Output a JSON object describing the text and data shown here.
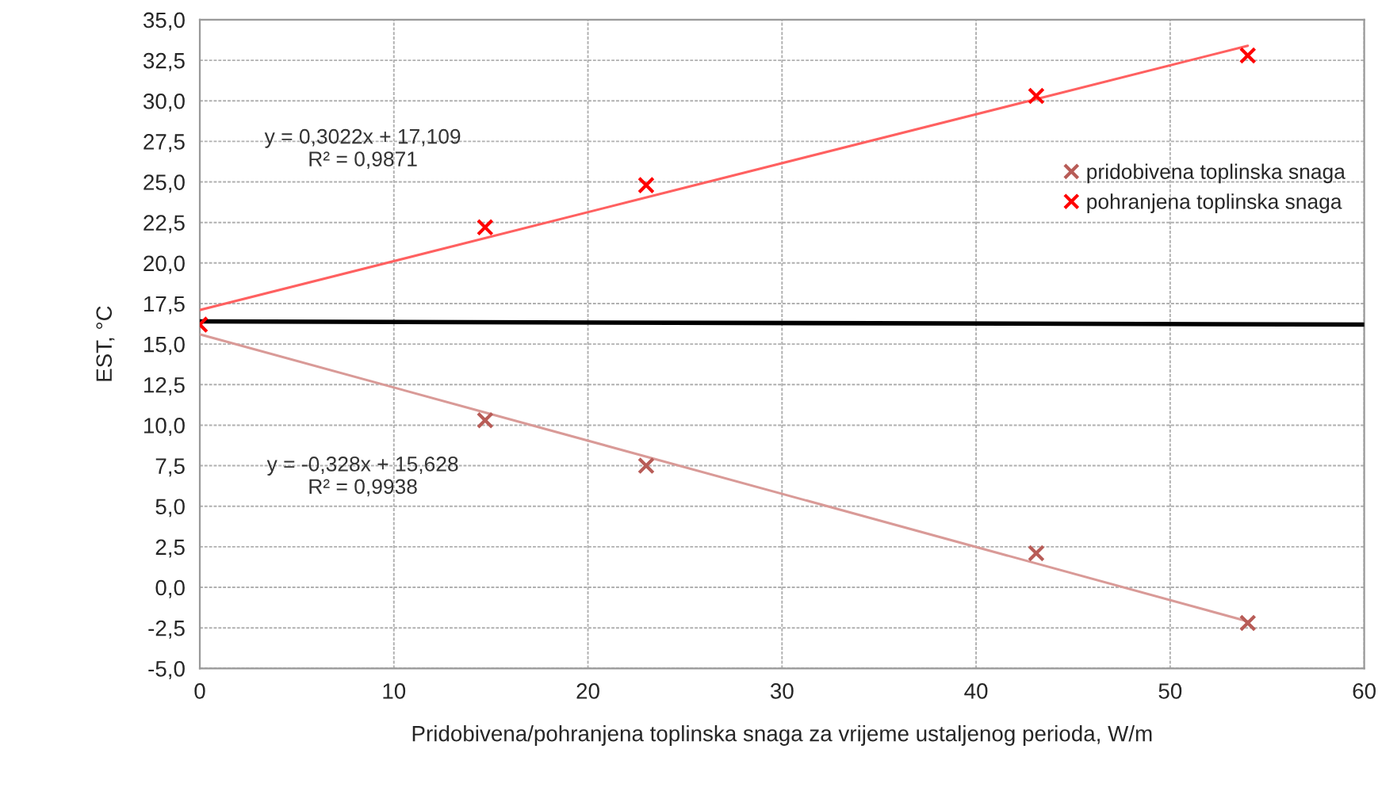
{
  "chart_data": {
    "type": "scatter",
    "xlabel": "Pridobivena/pohranjena toplinska snaga za vrijeme ustaljenog perioda, W/m",
    "ylabel": "EST, °C",
    "series": [
      {
        "name": "pridobivena toplinska snaga",
        "color": "#b85c57",
        "marker": "cross",
        "x": [
          14.7,
          23,
          43.1,
          54
        ],
        "values": [
          10.3,
          7.5,
          2.1,
          -2.2
        ]
      },
      {
        "name": "pohranjena toplinska snaga",
        "color": "#ff0000",
        "marker": "cross",
        "x": [
          0,
          14.7,
          23,
          43.1,
          54
        ],
        "values": [
          16.2,
          22.2,
          24.8,
          30.3,
          32.8
        ]
      },
      {
        "type": "line",
        "color": "#ff6060",
        "x": [
          0,
          54
        ],
        "values": [
          17.1,
          33.4
        ]
      },
      {
        "type": "line",
        "color": "#d99a97",
        "x": [
          0,
          54
        ],
        "values": [
          15.6,
          -2.1
        ]
      },
      {
        "type": "line",
        "color": "#000000",
        "x": [
          0,
          60
        ],
        "values": [
          16.4,
          16.2
        ]
      }
    ],
    "annotations": [
      "y = 0,3022x + 17,109\nR² = 0,9871",
      "y = -0,328x + 15,628\nR² = 0,9938"
    ],
    "xlim": [
      0,
      60
    ],
    "xticks": [
      0,
      10,
      20,
      30,
      40,
      50,
      60
    ],
    "ylim": [
      -5,
      35
    ],
    "yticks": [
      {
        "value": -5,
        "label": "-5,0"
      },
      {
        "value": -2.5,
        "label": "-2,5"
      },
      {
        "value": 0,
        "label": "0,0"
      },
      {
        "value": 2.5,
        "label": "2,5"
      },
      {
        "value": 5,
        "label": "5,0"
      },
      {
        "value": 7.5,
        "label": "7,5"
      },
      {
        "value": 10,
        "label": "10,0"
      },
      {
        "value": 12.5,
        "label": "12,5"
      },
      {
        "value": 15,
        "label": "15,0"
      },
      {
        "value": 17.5,
        "label": "17,5"
      },
      {
        "value": 20,
        "label": "20,0"
      },
      {
        "value": 22.5,
        "label": "22,5"
      },
      {
        "value": 25,
        "label": "25,0"
      },
      {
        "value": 27.5,
        "label": "27,5"
      },
      {
        "value": 30,
        "label": "30,0"
      },
      {
        "value": 32.5,
        "label": "32,5"
      },
      {
        "value": 35,
        "label": "35,0"
      }
    ],
    "grid": true,
    "legend": "right"
  }
}
